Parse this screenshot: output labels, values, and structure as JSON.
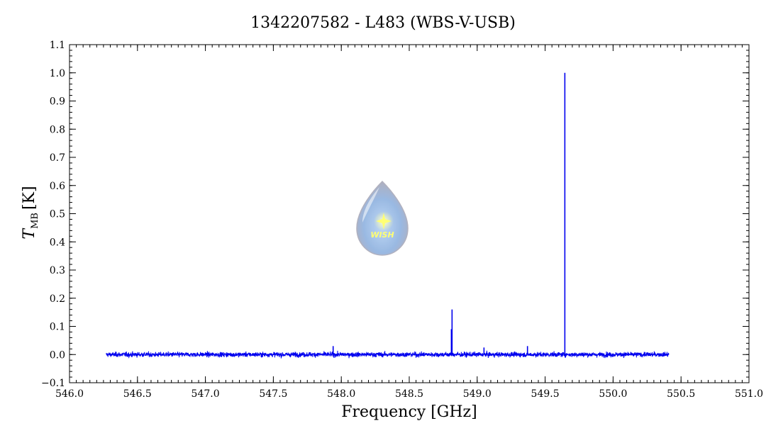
{
  "chart_data": {
    "type": "line",
    "title": "1342207582 - L483 (WBS-V-USB)",
    "xlabel": "Frequency [GHz]",
    "ylabel_main": "T",
    "ylabel_sub": "MB",
    "ylabel_unit": "[K]",
    "xlim": [
      546.0,
      551.0
    ],
    "ylim": [
      -0.1,
      1.1
    ],
    "x_ticks": [
      "546.0",
      "546.5",
      "547.0",
      "547.5",
      "548.0",
      "548.5",
      "549.0",
      "549.5",
      "550.0",
      "550.5",
      "551.0"
    ],
    "y_ticks": [
      "−0.1",
      "0.0",
      "0.1",
      "0.2",
      "0.3",
      "0.4",
      "0.5",
      "0.6",
      "0.7",
      "0.8",
      "0.9",
      "1.0",
      "1.1"
    ],
    "grid": false,
    "series": [
      {
        "color": "#0000ee",
        "x_range": [
          546.27,
          550.41
        ],
        "baseline": 0.0,
        "noise_rms": 0.006,
        "peaks": [
          {
            "x": 547.94,
            "y": 0.03
          },
          {
            "x": 548.815,
            "y": 0.16
          },
          {
            "x": 548.81,
            "y": 0.09
          },
          {
            "x": 549.05,
            "y": 0.025
          },
          {
            "x": 549.37,
            "y": 0.03
          },
          {
            "x": 549.645,
            "y": 1.0
          }
        ]
      }
    ]
  },
  "logo": {
    "text": "WISH",
    "icon": "water-drop-star-icon"
  }
}
